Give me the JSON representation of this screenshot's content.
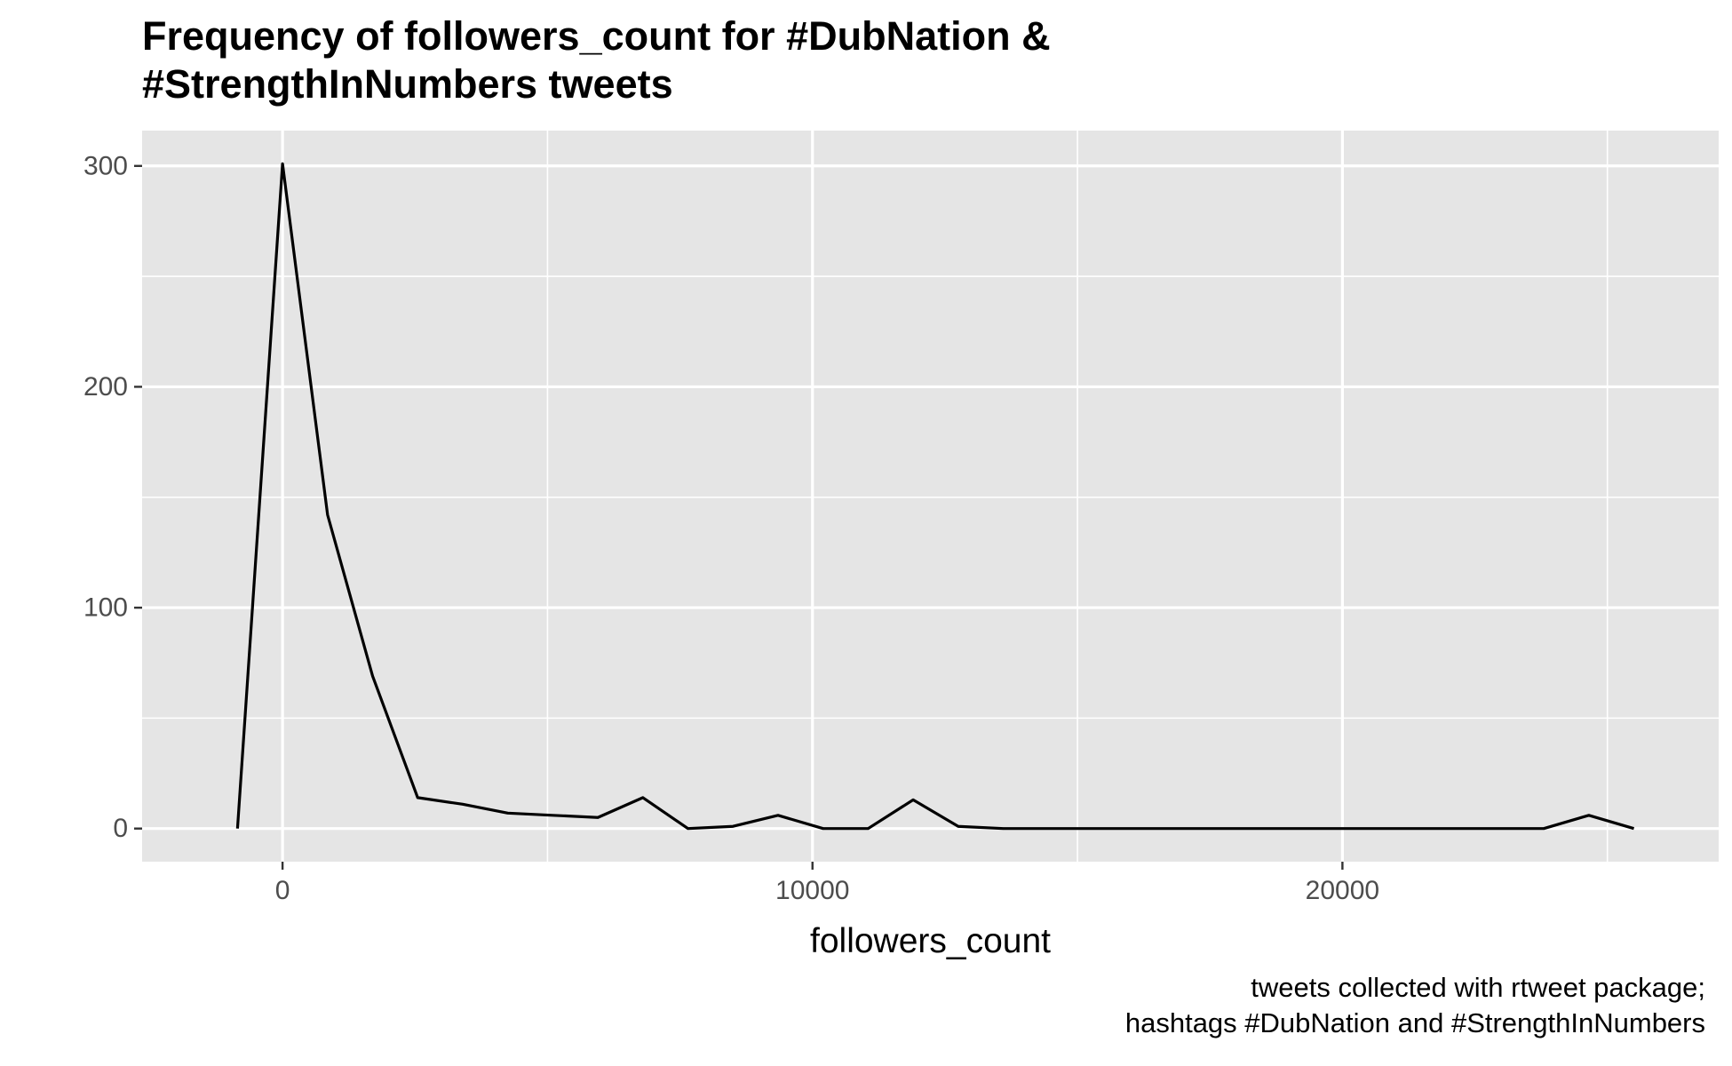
{
  "chart_data": {
    "type": "line",
    "title_lines": [
      "Frequency of followers_count for #DubNation &",
      "#StrengthInNumbers tweets"
    ],
    "xlabel": "followers_count",
    "ylabel": "",
    "caption_lines": [
      "tweets collected with rtweet package;",
      "hashtags #DubNation and #StrengthInNumbers"
    ],
    "xlim": [
      -2650,
      27100
    ],
    "ylim": [
      -15,
      316
    ],
    "x_ticks": [
      0,
      10000,
      20000
    ],
    "x_tick_labels": [
      "0",
      "10000",
      "20000"
    ],
    "x_minor_ticks": [
      5000,
      15000,
      25000
    ],
    "y_ticks": [
      0,
      100,
      200,
      300
    ],
    "y_tick_labels": [
      "0",
      "100",
      "200",
      "300"
    ],
    "y_minor_ticks": [
      50,
      150,
      250
    ],
    "grid": true,
    "line_color": "#000000",
    "panel_background": "#e5e5e5",
    "grid_color": "#ffffff",
    "series": [
      {
        "x": [
          -850,
          0,
          850,
          1700,
          2550,
          3400,
          4250,
          5100,
          5950,
          6800,
          7650,
          8500,
          9350,
          10200,
          11050,
          11900,
          12750,
          13600,
          14450,
          15300,
          16150,
          17000,
          17850,
          18700,
          19550,
          20400,
          21250,
          22100,
          22950,
          23800,
          24650,
          25500
        ],
        "y": [
          0,
          301,
          142,
          69,
          14,
          11,
          7,
          6,
          5,
          14,
          0,
          1,
          6,
          0,
          0,
          13,
          1,
          0,
          0,
          0,
          0,
          0,
          0,
          0,
          0,
          0,
          0,
          0,
          0,
          0,
          6,
          0
        ]
      }
    ]
  }
}
